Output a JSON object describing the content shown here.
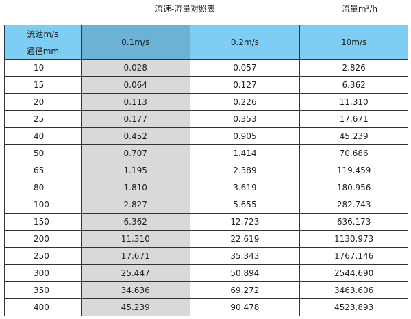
{
  "title": "流速-流量对照表",
  "unit_label": "流量m³/h",
  "colors": {
    "header": "#7ecef4",
    "header_selected": "#6cb1d6",
    "first_column_fill": "#d9d9d9"
  },
  "header": {
    "velocity_label": "流速m/s",
    "diameter_label": "通径mm",
    "columns": [
      "0.1m/s",
      "0.2m/s",
      "10m/s"
    ]
  },
  "rows": [
    {
      "dn": "10",
      "v": [
        "0.028",
        "0.057",
        "2.826"
      ]
    },
    {
      "dn": "15",
      "v": [
        "0.064",
        "0.127",
        "6.362"
      ]
    },
    {
      "dn": "20",
      "v": [
        "0.113",
        "0.226",
        "11.310"
      ]
    },
    {
      "dn": "25",
      "v": [
        "0.177",
        "0.353",
        "17.671"
      ]
    },
    {
      "dn": "40",
      "v": [
        "0.452",
        "0.905",
        "45.239"
      ]
    },
    {
      "dn": "50",
      "v": [
        "0.707",
        "1.414",
        "70.686"
      ]
    },
    {
      "dn": "65",
      "v": [
        "1.195",
        "2.389",
        "119.459"
      ]
    },
    {
      "dn": "80",
      "v": [
        "1.810",
        "3.619",
        "180.956"
      ]
    },
    {
      "dn": "100",
      "v": [
        "2.827",
        "5.655",
        "282.743"
      ]
    },
    {
      "dn": "150",
      "v": [
        "6.362",
        "12.723",
        "636.173"
      ]
    },
    {
      "dn": "200",
      "v": [
        "11.310",
        "22.619",
        "1130.973"
      ]
    },
    {
      "dn": "250",
      "v": [
        "17.671",
        "35.343",
        "1767.146"
      ]
    },
    {
      "dn": "300",
      "v": [
        "25.447",
        "50.894",
        "2544.690"
      ]
    },
    {
      "dn": "350",
      "v": [
        "34.636",
        "69.272",
        "3463.606"
      ]
    },
    {
      "dn": "400",
      "v": [
        "45.239",
        "90.478",
        "4523.893"
      ]
    }
  ]
}
